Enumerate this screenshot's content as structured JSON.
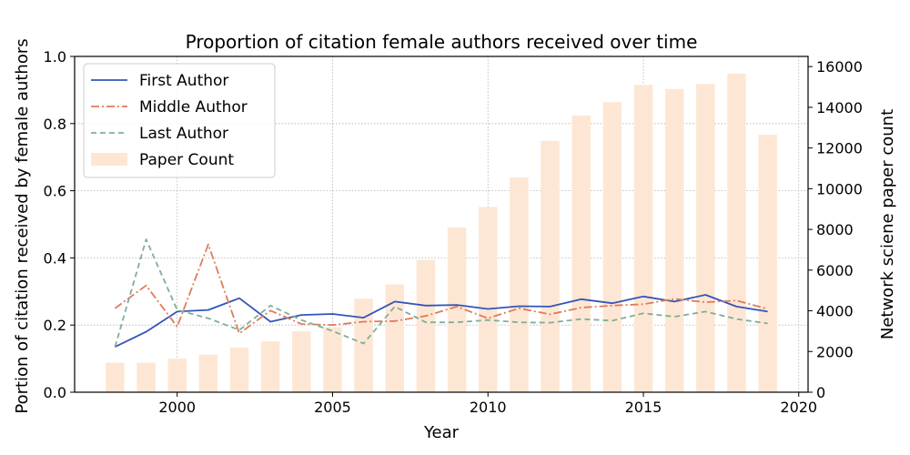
{
  "chart_data": {
    "type": "bar+line",
    "title": "Proportion of citation female authors received over time",
    "xlabel": "Year",
    "ylabel_left": "Portion of citation received by female authors",
    "ylabel_right": "Network sciene paper count",
    "xlim": [
      1996.7,
      2020.3
    ],
    "ylim_left": [
      0,
      1.0
    ],
    "ylim_right": [
      0,
      16500
    ],
    "grid": true,
    "legend_position": "top-left",
    "x_ticks": [
      2000,
      2005,
      2010,
      2015,
      2020
    ],
    "y_ticks_left": [
      0.0,
      0.2,
      0.4,
      0.6,
      0.8,
      1.0
    ],
    "y_ticks_right": [
      0,
      2000,
      4000,
      6000,
      8000,
      10000,
      12000,
      14000,
      16000
    ],
    "years": [
      1998,
      1999,
      2000,
      2001,
      2002,
      2003,
      2004,
      2005,
      2006,
      2007,
      2008,
      2009,
      2010,
      2011,
      2012,
      2013,
      2014,
      2015,
      2016,
      2017,
      2018,
      2019
    ],
    "bars": {
      "name": "Paper Count",
      "color": "#fde7d4",
      "values": [
        1450,
        1450,
        1650,
        1850,
        2200,
        2500,
        3000,
        3200,
        4600,
        5300,
        6500,
        8100,
        9100,
        10550,
        12350,
        13600,
        14250,
        15100,
        14900,
        15150,
        15650,
        12650
      ]
    },
    "series": [
      {
        "name": "First Author",
        "color": "#3355b8",
        "dash": "solid",
        "values": [
          0.135,
          0.18,
          0.24,
          0.245,
          0.28,
          0.21,
          0.23,
          0.233,
          0.222,
          0.27,
          0.258,
          0.26,
          0.248,
          0.256,
          0.255,
          0.277,
          0.265,
          0.285,
          0.27,
          0.29,
          0.255,
          0.24
        ]
      },
      {
        "name": "Middle Author",
        "color": "#e07b5a",
        "dash": "dashdot",
        "values": [
          0.25,
          0.318,
          0.195,
          0.44,
          0.175,
          0.243,
          0.203,
          0.2,
          0.21,
          0.212,
          0.227,
          0.255,
          0.22,
          0.25,
          0.232,
          0.252,
          0.258,
          0.262,
          0.278,
          0.268,
          0.273,
          0.248
        ]
      },
      {
        "name": "Last Author",
        "color": "#7fae98",
        "dash": "dashed",
        "values": [
          0.135,
          0.455,
          0.245,
          0.22,
          0.185,
          0.258,
          0.215,
          0.182,
          0.145,
          0.255,
          0.208,
          0.208,
          0.215,
          0.208,
          0.207,
          0.218,
          0.213,
          0.235,
          0.225,
          0.24,
          0.218,
          0.205
        ]
      }
    ]
  }
}
